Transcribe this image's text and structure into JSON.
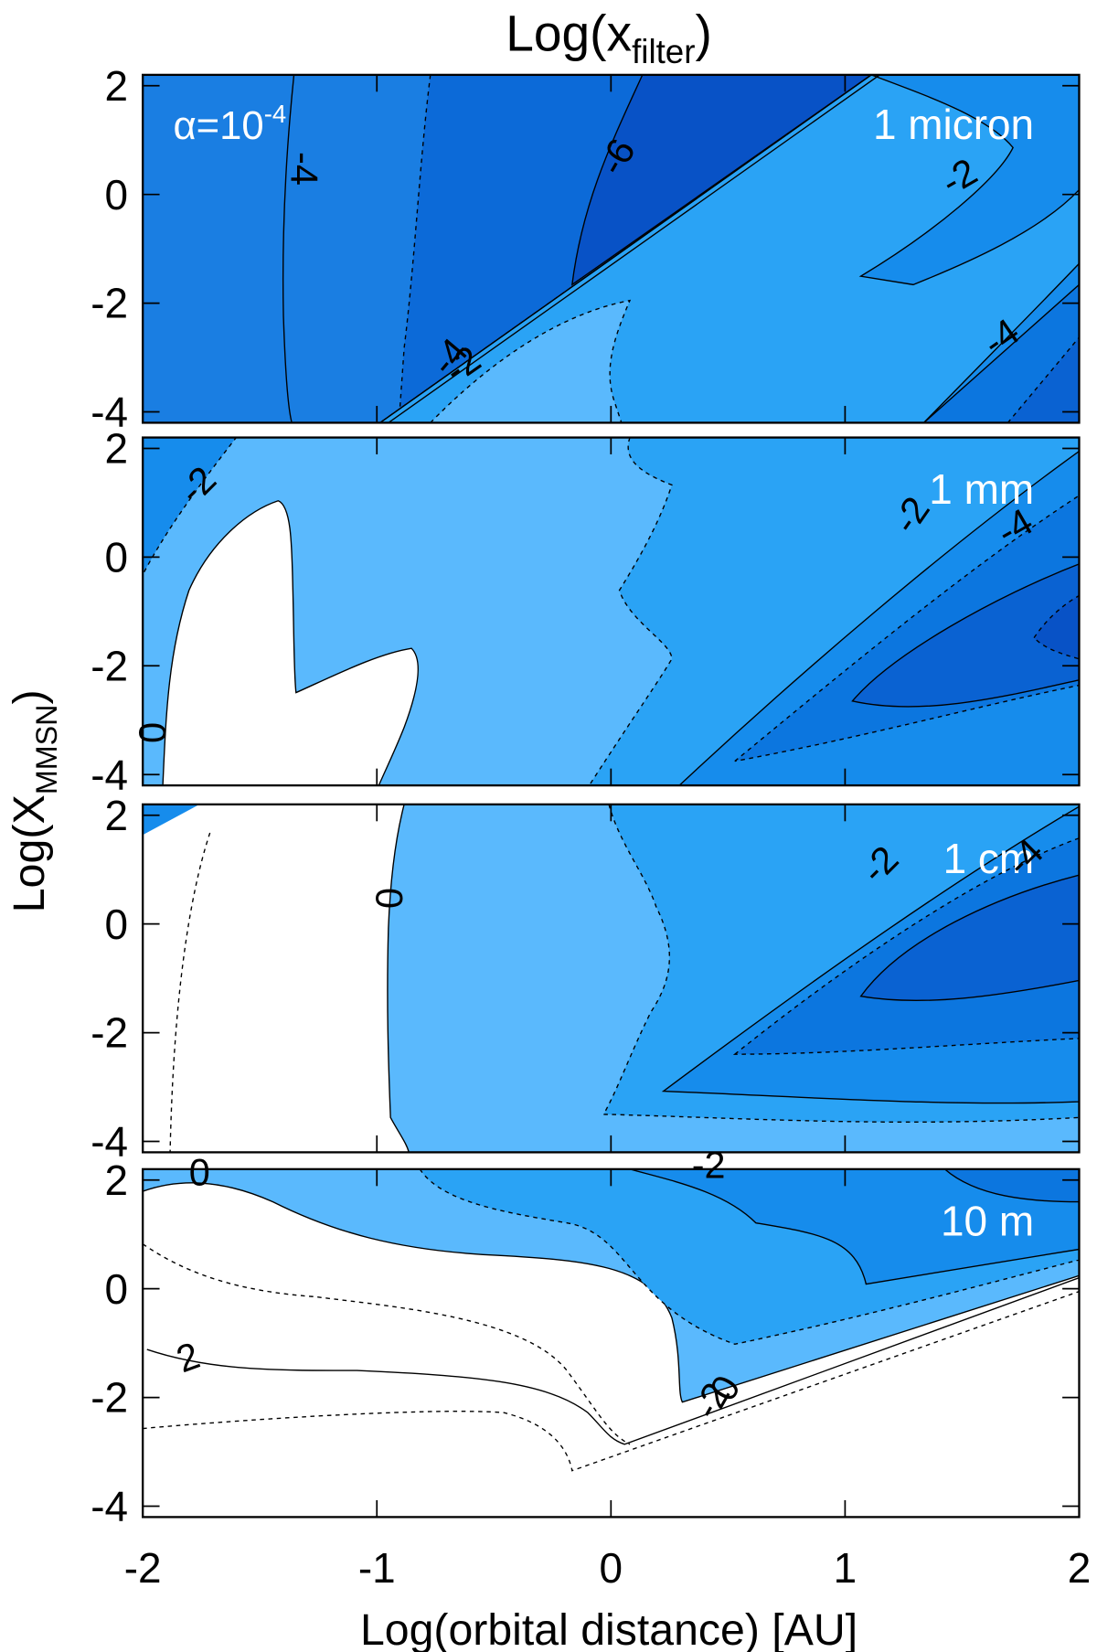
{
  "chart_data": {
    "type": "contour",
    "title": [
      "Log(x",
      "filter",
      ")"
    ],
    "x_label": "Log(orbital distance) [AU]",
    "y_label": [
      "Log(X",
      "MMSN",
      ")"
    ],
    "annotation": [
      "α=10",
      "-4"
    ],
    "xlim": [
      -2,
      2
    ],
    "xticks": [
      -2,
      -1,
      0,
      1,
      2
    ],
    "ylim": [
      -4.2,
      2.2
    ],
    "yticks": [
      2,
      0,
      -2,
      -4
    ],
    "panels": [
      {
        "label": "1 micron",
        "contour_labels": [
          "-4",
          "-6",
          "-2",
          "-4",
          "-4",
          "-2"
        ]
      },
      {
        "label": "1 mm",
        "contour_labels": [
          "-2",
          "-2",
          "-4",
          "0"
        ]
      },
      {
        "label": "1 cm",
        "contour_labels": [
          "-2",
          "-4",
          "0"
        ]
      },
      {
        "label": "10 m",
        "contour_labels": [
          "0",
          "-2",
          "2",
          "-2",
          "0"
        ]
      }
    ]
  }
}
